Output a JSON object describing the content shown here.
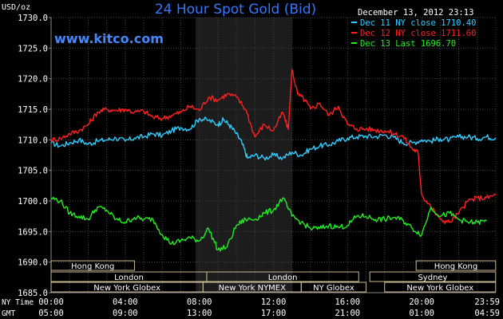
{
  "chart_data": {
    "type": "line",
    "title": "24 Hour Spot Gold (Bid)",
    "source": "www.kitco.com",
    "date_label": "December 13, 2012 23:13",
    "ylabel": "USD/oz",
    "ylim": [
      1685,
      1730
    ],
    "yticks": [
      "1685.0",
      "1690.0",
      "1695.0",
      "1700.0",
      "1705.0",
      "1710.0",
      "1715.0",
      "1720.0",
      "1725.0",
      "1730.0"
    ],
    "xlim": [
      0,
      24
    ],
    "xaxis_rows": [
      {
        "label": "NY Time",
        "ticks": [
          "00:00",
          "04:00",
          "08:00",
          "12:00",
          "16:00",
          "20:00",
          "23:59"
        ]
      },
      {
        "label": "GMT",
        "ticks": [
          "05:00",
          "09:00",
          "13:00",
          "17:00",
          "21:00",
          "01:00",
          "04:59"
        ]
      }
    ],
    "grid": true,
    "legend_position": "top-right",
    "colors": {
      "dec11": "#33ccff",
      "dec12": "#ff2020",
      "dec13": "#22ee22",
      "title": "#3377ff",
      "source": "#4488ff",
      "grid": "#444444",
      "shade": "#1c1c1c",
      "session_box": "#c8b890"
    },
    "shaded_hours": [
      7.8,
      13.0
    ],
    "sessions": [
      {
        "name": "Hong Kong",
        "start": 0,
        "end": 4.5,
        "row": 0
      },
      {
        "name": "Hong Kong",
        "start": 19.7,
        "end": 23.99,
        "row": 0
      },
      {
        "name": "London",
        "start": 0,
        "end": 8.4,
        "row": 1
      },
      {
        "name": "Sydney",
        "start": 17.2,
        "end": 23.99,
        "row": 1
      },
      {
        "name": "London",
        "start": 8.4,
        "end": 16.6,
        "row": 1
      },
      {
        "name": "New York Globex",
        "start": 0,
        "end": 8.2,
        "row": 2
      },
      {
        "name": "New York NYMEX",
        "start": 8.2,
        "end": 13.5,
        "row": 2
      },
      {
        "name": "NY Globex",
        "start": 13.5,
        "end": 17.0,
        "row": 2
      },
      {
        "name": "New York Globex",
        "start": 18.0,
        "end": 23.99,
        "row": 2
      }
    ],
    "series": [
      {
        "name": "Dec 11 NY close 1710.40",
        "color_key": "dec11",
        "x": [
          0,
          0.5,
          1,
          1.5,
          2,
          2.5,
          3,
          3.5,
          4,
          4.5,
          5,
          5.5,
          6,
          6.5,
          7,
          7.5,
          8,
          8.5,
          9,
          9.3,
          9.6,
          10,
          10.3,
          10.6,
          11,
          11.5,
          12,
          12.5,
          13,
          13.5,
          14,
          14.5,
          15,
          15.5,
          16,
          16.5,
          17,
          17.5,
          18,
          18.5,
          19,
          19.5,
          20,
          20.5,
          21,
          21.5,
          22,
          22.5,
          23,
          23.5,
          24
        ],
        "y": [
          1709.5,
          1709,
          1709.5,
          1710,
          1709.3,
          1709.8,
          1710,
          1710.3,
          1709.8,
          1710.3,
          1710.5,
          1711,
          1710.7,
          1711.5,
          1712,
          1711.8,
          1713.5,
          1713.2,
          1712.5,
          1713.3,
          1712.5,
          1711,
          1709.5,
          1707,
          1707.5,
          1707,
          1707.5,
          1707,
          1708,
          1707.5,
          1708.5,
          1709,
          1709.2,
          1709.8,
          1710.3,
          1710.5,
          1710.6,
          1710.5,
          1710.8,
          1710.4,
          1709.5,
          1709.5,
          1710,
          1709.8,
          1710.2,
          1710,
          1710.5,
          1710.5,
          1710.2,
          1710.5,
          1710.3
        ]
      },
      {
        "name": "Dec 12 NY close 1711.60",
        "color_key": "dec12",
        "x": [
          0,
          0.5,
          1,
          1.5,
          2,
          2.5,
          3,
          3.5,
          4,
          4.5,
          5,
          5.5,
          6,
          6.5,
          7,
          7.5,
          8,
          8.5,
          9,
          9.5,
          10,
          10.5,
          11,
          11.5,
          12,
          12.5,
          12.8,
          13,
          13.3,
          13.7,
          14,
          14.5,
          15,
          15.5,
          16,
          16.5,
          17,
          17.5,
          18,
          18.5,
          19,
          19.5,
          19.8,
          20,
          20.5,
          21,
          21.5,
          22,
          22.5,
          23,
          23.5,
          24
        ],
        "y": [
          1710,
          1710.2,
          1711,
          1711.5,
          1712.5,
          1714.5,
          1715,
          1714.8,
          1715,
          1714.5,
          1714.7,
          1713.7,
          1713.5,
          1714,
          1714.5,
          1715.5,
          1714.8,
          1717,
          1716.5,
          1717.5,
          1717,
          1715,
          1710.5,
          1712.5,
          1711.5,
          1714.5,
          1711.7,
          1721.5,
          1717.5,
          1716.5,
          1715,
          1716,
          1714,
          1715.5,
          1712.5,
          1711.8,
          1711.8,
          1711.6,
          1711.5,
          1711,
          1710.5,
          1708.5,
          1708,
          1701,
          1699,
          1697,
          1696.5,
          1698,
          1700,
          1700.5,
          1700.5,
          1701
        ]
      },
      {
        "name": "Dec 13 Last 1696.70",
        "color_key": "dec13",
        "x": [
          0,
          0.5,
          1,
          1.5,
          2,
          2.5,
          3,
          3.5,
          4,
          4.5,
          5,
          5.5,
          6,
          6.5,
          7,
          7.5,
          8,
          8.5,
          9,
          9.5,
          10,
          10.5,
          11,
          11.5,
          12,
          12.5,
          13,
          13.5,
          14,
          14.5,
          15,
          15.5,
          16,
          16.5,
          17,
          17.5,
          18,
          18.5,
          19,
          19.5,
          20,
          20.5,
          21,
          21.5,
          22,
          22.5,
          23,
          23.5
        ],
        "y": [
          1700.5,
          1700,
          1698,
          1697.5,
          1697,
          1699,
          1698.5,
          1697,
          1696.5,
          1697.3,
          1697,
          1697,
          1694.5,
          1693,
          1693.5,
          1694,
          1693.5,
          1695.5,
          1692,
          1692.5,
          1696,
          1697,
          1697,
          1698,
          1698.5,
          1700.5,
          1697.5,
          1696.5,
          1695.5,
          1695.5,
          1696,
          1695.7,
          1696,
          1697.5,
          1697.5,
          1697,
          1697,
          1697.3,
          1696.8,
          1695.5,
          1694.5,
          1699,
          1697.5,
          1698,
          1697,
          1696.5,
          1696.5,
          1696.7
        ]
      }
    ]
  }
}
